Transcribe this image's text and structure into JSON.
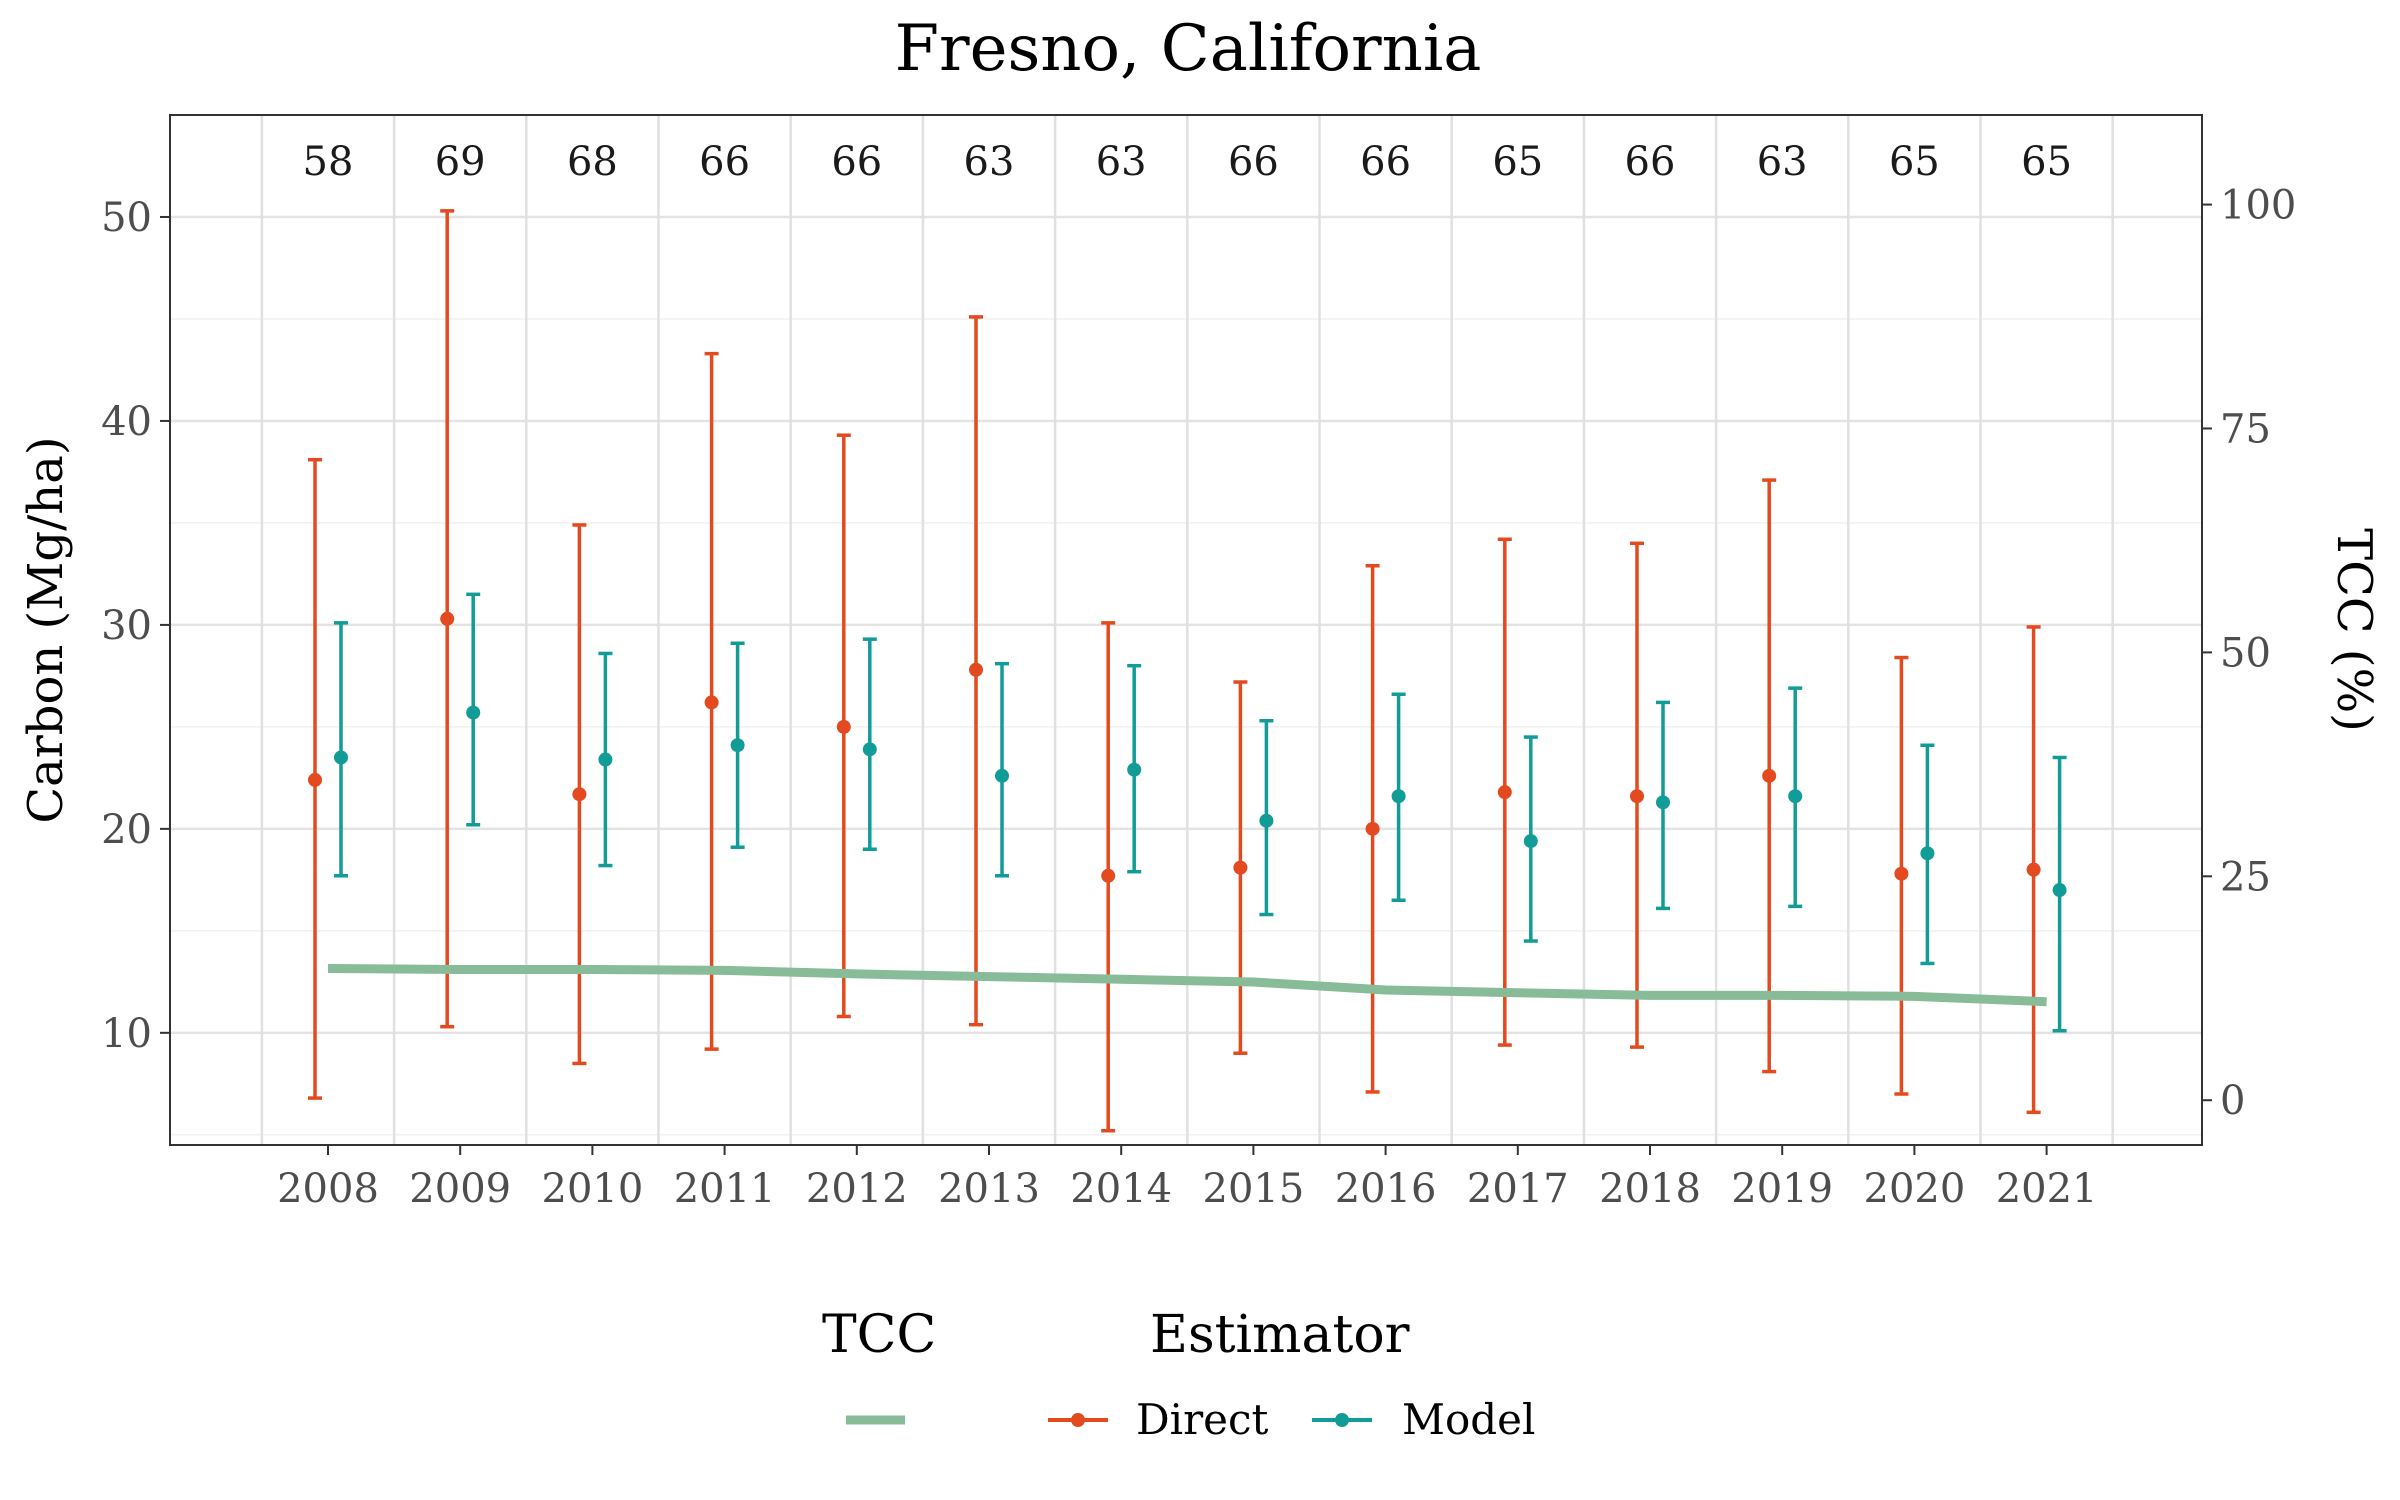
{
  "chart_data": {
    "type": "scatter",
    "title": "Fresno, California",
    "ylabel": "Carbon (Mg/ha)",
    "y2label": "TCC (%)",
    "xlabel": "",
    "categories": [
      "2008",
      "2009",
      "2010",
      "2011",
      "2012",
      "2013",
      "2014",
      "2015",
      "2016",
      "2017",
      "2018",
      "2019",
      "2020",
      "2021"
    ],
    "counts": [
      "58",
      "69",
      "68",
      "66",
      "66",
      "63",
      "63",
      "66",
      "66",
      "65",
      "66",
      "63",
      "65",
      "65"
    ],
    "ylim": [
      4.5,
      55
    ],
    "yticks": [
      10,
      20,
      30,
      40,
      50
    ],
    "y2lim": [
      -5,
      110
    ],
    "y2ticks": [
      0,
      25,
      50,
      75,
      100
    ],
    "grid": true,
    "legend_position": "bottom",
    "colors": {
      "Direct": "#e34a1f",
      "Model": "#129c97",
      "TCC": "#88bb97"
    },
    "legend": {
      "tcc_title": "TCC",
      "estimator_title": "Estimator",
      "direct_label": "Direct",
      "model_label": "Model"
    },
    "series": [
      {
        "name": "Direct",
        "values": [
          22.4,
          30.3,
          21.7,
          26.2,
          25.0,
          27.8,
          17.7,
          18.1,
          20.0,
          21.8,
          21.6,
          22.6,
          17.8,
          18.0
        ],
        "lower": [
          6.8,
          10.3,
          8.5,
          9.2,
          10.8,
          10.4,
          5.2,
          9.0,
          7.1,
          9.4,
          9.3,
          8.1,
          7.0,
          6.1
        ],
        "upper": [
          38.1,
          50.3,
          34.9,
          43.3,
          39.3,
          45.1,
          30.1,
          27.2,
          32.9,
          34.2,
          34.0,
          37.1,
          28.4,
          29.9
        ]
      },
      {
        "name": "Model",
        "values": [
          23.5,
          25.7,
          23.4,
          24.1,
          23.9,
          22.6,
          22.9,
          20.4,
          21.6,
          19.4,
          21.3,
          21.6,
          18.8,
          17.0
        ],
        "lower": [
          17.7,
          20.2,
          18.2,
          19.1,
          19.0,
          17.7,
          17.9,
          15.8,
          16.5,
          14.5,
          16.1,
          16.2,
          13.4,
          10.1
        ],
        "upper": [
          30.1,
          31.5,
          28.6,
          29.1,
          29.3,
          28.1,
          28.0,
          25.3,
          26.6,
          24.5,
          26.2,
          26.9,
          24.1,
          23.5
        ]
      },
      {
        "name": "TCC",
        "axis": "right",
        "values": [
          14.7,
          14.6,
          14.6,
          14.5,
          14.1,
          13.8,
          13.5,
          13.2,
          12.3,
          12.0,
          11.7,
          11.7,
          11.6,
          11.0
        ]
      }
    ]
  }
}
